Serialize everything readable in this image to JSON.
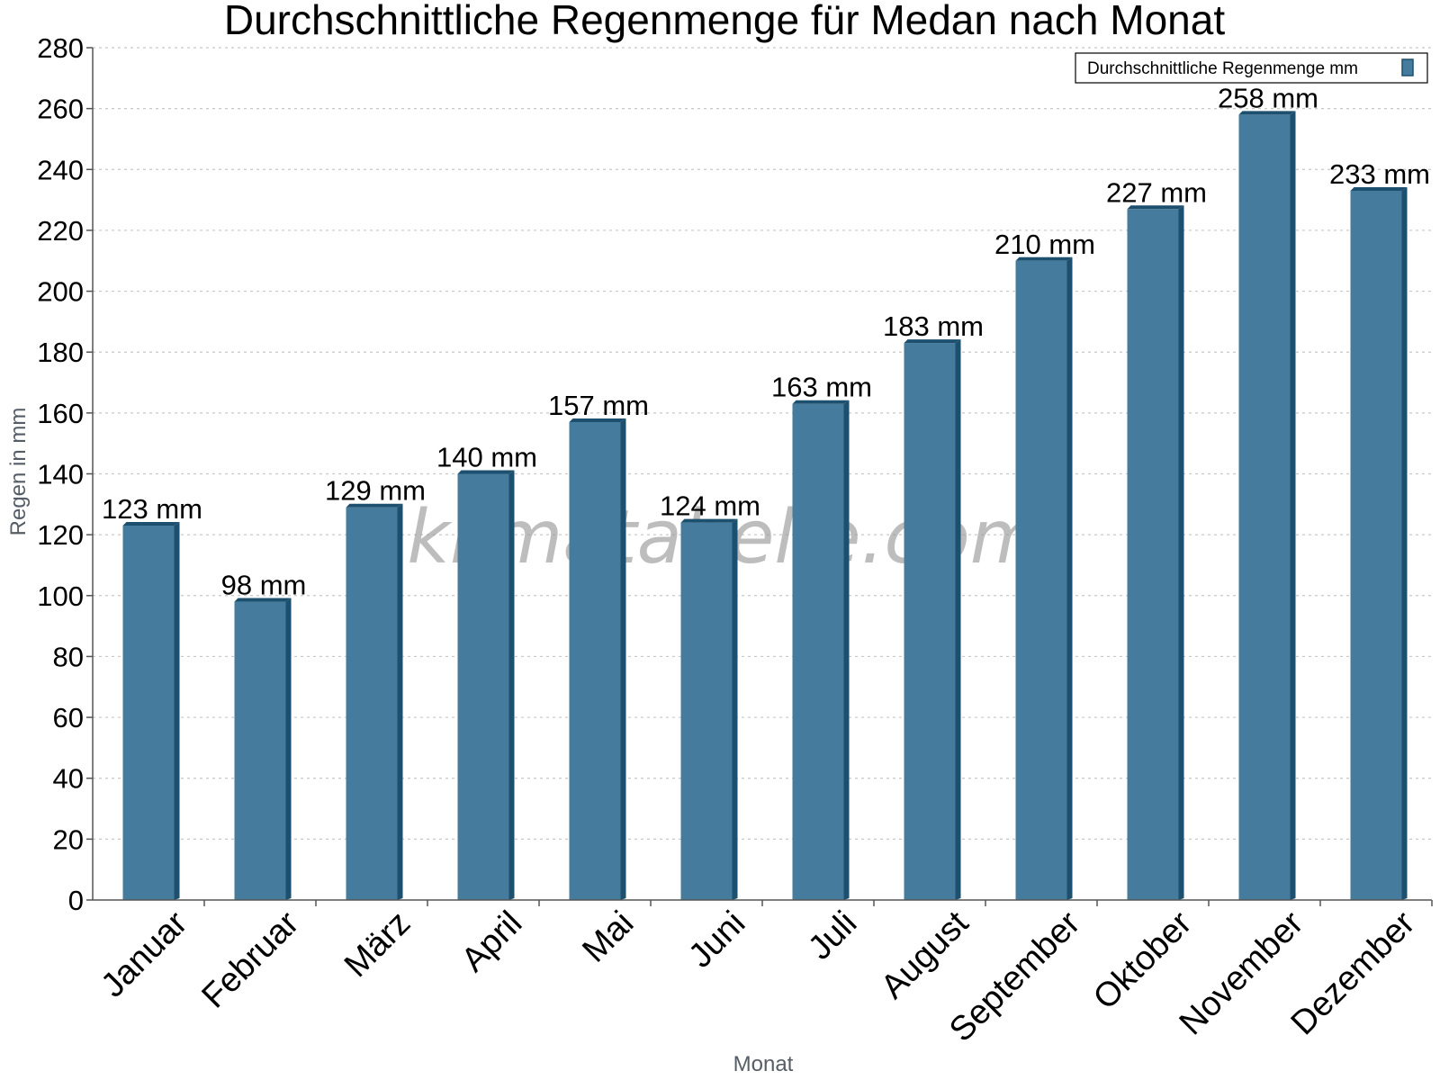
{
  "chart_data": {
    "type": "bar",
    "title": "Durchschnittliche Regenmenge für Medan nach Monat",
    "xlabel": "Monat",
    "ylabel": "Regen in mm",
    "ylim": [
      0,
      280
    ],
    "ytick_step": 20,
    "grid": true,
    "legend_position": "top-right",
    "watermark": "klimatabelle.com",
    "categories": [
      "Januar",
      "Februar",
      "März",
      "April",
      "Mai",
      "Juni",
      "Juli",
      "August",
      "September",
      "Oktober",
      "November",
      "Dezember"
    ],
    "series": [
      {
        "name": "Durchschnittliche Regenmenge mm",
        "values": [
          123,
          98,
          129,
          140,
          157,
          124,
          163,
          183,
          210,
          227,
          258,
          233
        ],
        "labels": [
          "123 mm",
          "98 mm",
          "129 mm",
          "140 mm",
          "157 mm",
          "124 mm",
          "163 mm",
          "183 mm",
          "210 mm",
          "227 mm",
          "258 mm",
          "233 mm"
        ]
      }
    ],
    "colors": {
      "bar_face": "#457b9d",
      "bar_side": "#1d4f6e",
      "axis": "#555555",
      "grid": "#c8c8c8"
    }
  }
}
